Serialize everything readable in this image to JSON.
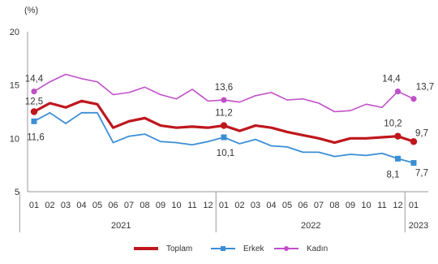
{
  "chart_data": {
    "type": "line",
    "unit_label": "(%)",
    "title": "",
    "xlabel": "",
    "ylabel": "",
    "ylim": [
      5,
      20
    ],
    "yticks": [
      "5",
      "10",
      "15",
      "20"
    ],
    "month_labels": [
      "01",
      "02",
      "03",
      "04",
      "05",
      "06",
      "07",
      "08",
      "09",
      "10",
      "11",
      "12",
      "01",
      "02",
      "03",
      "04",
      "05",
      "06",
      "07",
      "08",
      "09",
      "10",
      "11",
      "12",
      "01"
    ],
    "years": [
      {
        "label": "2021",
        "start": 0,
        "end": 11
      },
      {
        "label": "2022",
        "start": 12,
        "end": 23
      },
      {
        "label": "2023",
        "start": 24,
        "end": 24
      }
    ],
    "grid": false,
    "legend_position": "bottom-center",
    "series": [
      {
        "name": "Toplam",
        "color": "#c0161d",
        "marker": "circle",
        "values": [
          12.5,
          13.3,
          12.9,
          13.5,
          13.2,
          11.0,
          11.6,
          11.9,
          11.2,
          11.0,
          11.1,
          11.0,
          11.2,
          10.7,
          11.2,
          11.0,
          10.6,
          10.3,
          10.0,
          9.6,
          10.0,
          10.0,
          10.1,
          10.2,
          9.7
        ]
      },
      {
        "name": "Erkek",
        "color": "#3b8ed6",
        "marker": "square",
        "values": [
          11.6,
          12.4,
          11.4,
          12.4,
          12.4,
          9.6,
          10.2,
          10.4,
          9.7,
          9.6,
          9.4,
          9.7,
          10.1,
          9.5,
          9.9,
          9.3,
          9.2,
          8.7,
          8.7,
          8.3,
          8.5,
          8.4,
          8.6,
          8.1,
          7.7
        ]
      },
      {
        "name": "Kadın",
        "color": "#c04fc8",
        "marker": "circle",
        "values": [
          14.4,
          15.3,
          16.0,
          15.6,
          15.3,
          14.1,
          14.3,
          14.8,
          14.1,
          13.7,
          14.6,
          13.5,
          13.6,
          13.4,
          14.0,
          14.3,
          13.6,
          13.7,
          13.3,
          12.5,
          12.6,
          13.2,
          12.9,
          14.4,
          13.7
        ]
      }
    ],
    "annotations": [
      {
        "series": 0,
        "index": 0,
        "text": "12,5",
        "dx": 0,
        "dy": -9
      },
      {
        "series": 0,
        "index": 12,
        "text": "11,2",
        "dx": 0,
        "dy": -12
      },
      {
        "series": 0,
        "index": 23,
        "text": "10,2",
        "dx": -6,
        "dy": -12
      },
      {
        "series": 0,
        "index": 24,
        "text": "9,7",
        "dx": 10,
        "dy": -7
      },
      {
        "series": 1,
        "index": 0,
        "text": "11,6",
        "dx": 2,
        "dy": 23
      },
      {
        "series": 1,
        "index": 12,
        "text": "10,1",
        "dx": 2,
        "dy": 23
      },
      {
        "series": 1,
        "index": 23,
        "text": "8,1",
        "dx": -6,
        "dy": 23
      },
      {
        "series": 1,
        "index": 24,
        "text": "7,7",
        "dx": 10,
        "dy": 16
      },
      {
        "series": 2,
        "index": 0,
        "text": "14,4",
        "dx": 0,
        "dy": -12
      },
      {
        "series": 2,
        "index": 12,
        "text": "13,6",
        "dx": 0,
        "dy": -12
      },
      {
        "series": 2,
        "index": 23,
        "text": "14,4",
        "dx": -8,
        "dy": -12
      },
      {
        "series": 2,
        "index": 24,
        "text": "13,7",
        "dx": 14,
        "dy": -11
      }
    ]
  }
}
